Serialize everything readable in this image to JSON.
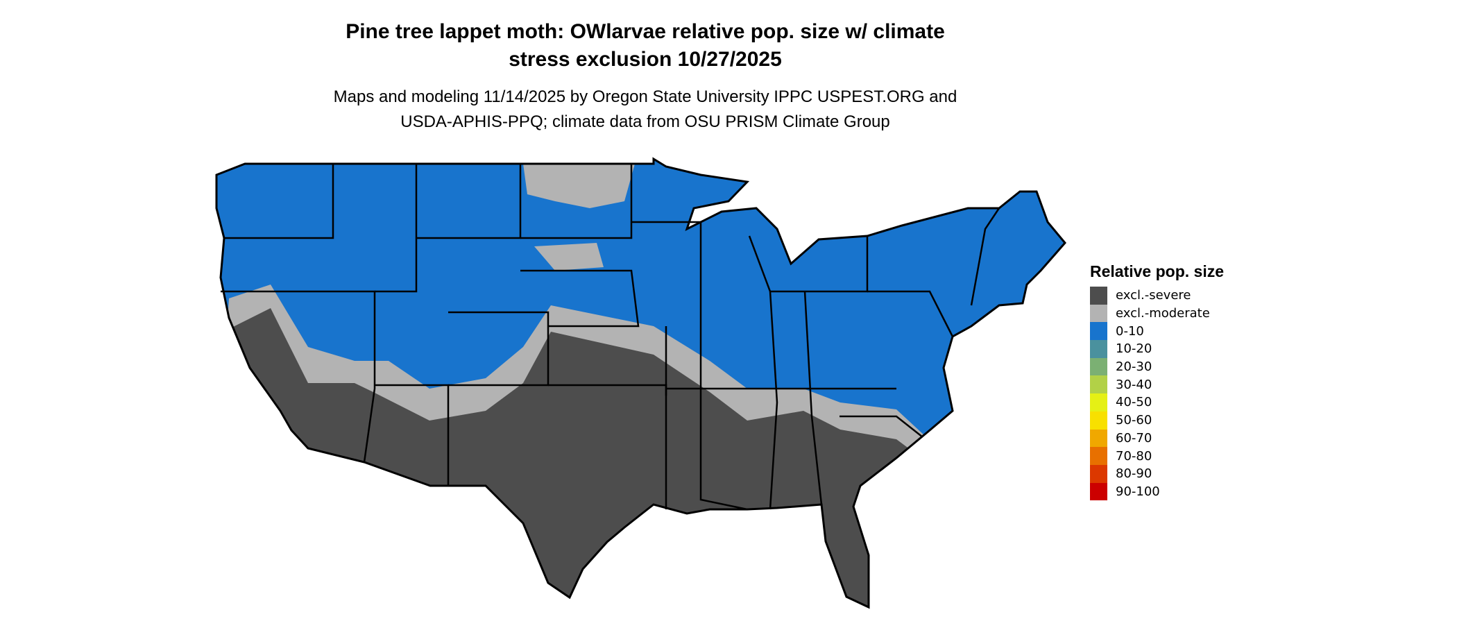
{
  "title_line1": "Pine tree lappet moth: OWlarvae relative pop. size w/ climate",
  "title_line2": "stress exclusion 10/27/2025",
  "subtitle_line1": "Maps and modeling 11/14/2025 by Oregon State University IPPC USPEST.ORG and",
  "subtitle_line2": "USDA-APHIS-PPQ; climate data from OSU PRISM Climate Group",
  "legend": {
    "title": "Relative pop. size",
    "items": [
      {
        "label": "excl.-severe",
        "color": "#4d4d4d"
      },
      {
        "label": "excl.-moderate",
        "color": "#b3b3b3"
      },
      {
        "label": "0-10",
        "color": "#1874cd"
      },
      {
        "label": "10-20",
        "color": "#4a919e"
      },
      {
        "label": "20-30",
        "color": "#7bb073"
      },
      {
        "label": "30-40",
        "color": "#b2d147"
      },
      {
        "label": "40-50",
        "color": "#e5f015"
      },
      {
        "label": "50-60",
        "color": "#f8e000"
      },
      {
        "label": "60-70",
        "color": "#f0a800"
      },
      {
        "label": "70-80",
        "color": "#e87000"
      },
      {
        "label": "80-90",
        "color": "#dc3800"
      },
      {
        "label": "90-100",
        "color": "#cc0000"
      }
    ]
  }
}
